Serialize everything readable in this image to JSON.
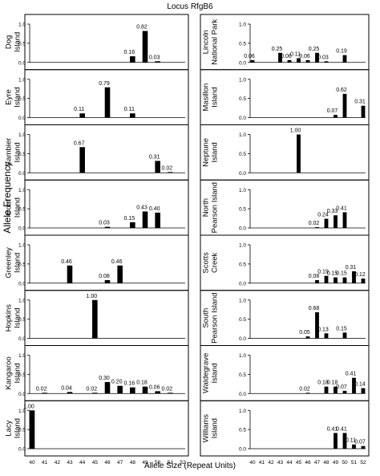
{
  "figure": {
    "title": "Locus RfgB6",
    "ylabel": "Allele Frequency",
    "xlabel": "Allele Size (Repeat Units)"
  },
  "chart_data": {
    "type": "bar",
    "title": "Locus RfgB6",
    "xlabel": "Allele Size (Repeat Units)",
    "ylabel": "Allele Frequency",
    "x_ticks": [
      "40",
      "41",
      "42",
      "43",
      "44",
      "45",
      "46",
      "47",
      "48",
      "49",
      "50",
      "51",
      "52"
    ],
    "ylim": [
      0,
      1.0
    ],
    "y_ticks": [
      "0.0",
      "0.5",
      "1.0"
    ],
    "panels": [
      {
        "name": "Dog Island",
        "column": "left",
        "bars": [
          {
            "x": 48,
            "value": 0.16,
            "label": "0.16"
          },
          {
            "x": 49,
            "value": 0.82,
            "label": "0.82"
          },
          {
            "x": 50,
            "value": 0.03,
            "label": "0.03"
          }
        ]
      },
      {
        "name": "Eyre Island",
        "column": "left",
        "bars": [
          {
            "x": 44,
            "value": 0.11,
            "label": "0.11"
          },
          {
            "x": 46,
            "value": 0.79,
            "label": "0.79"
          },
          {
            "x": 48,
            "value": 0.11,
            "label": "0.11"
          }
        ]
      },
      {
        "name": "Gambier Island",
        "column": "left",
        "bars": [
          {
            "x": 44,
            "value": 0.67,
            "label": "0.67"
          },
          {
            "x": 50,
            "value": 0.31,
            "label": "0.31"
          },
          {
            "x": 51,
            "value": 0.02,
            "label": "0.02"
          }
        ]
      },
      {
        "name": "Goat Island",
        "column": "left",
        "bars": [
          {
            "x": 46,
            "value": 0.03,
            "label": "0.03"
          },
          {
            "x": 48,
            "value": 0.15,
            "label": "0.15"
          },
          {
            "x": 49,
            "value": 0.43,
            "label": "0.43"
          },
          {
            "x": 50,
            "value": 0.4,
            "label": "0.40"
          }
        ]
      },
      {
        "name": "Greenley Island",
        "column": "left",
        "bars": [
          {
            "x": 43,
            "value": 0.46,
            "label": "0.46"
          },
          {
            "x": 46,
            "value": 0.08,
            "label": "0.08"
          },
          {
            "x": 47,
            "value": 0.46,
            "label": "0.46"
          }
        ]
      },
      {
        "name": "Hopkins Island",
        "column": "left",
        "bars": [
          {
            "x": 45,
            "value": 1.0,
            "label": "1.00"
          }
        ]
      },
      {
        "name": "Kangaroo Island",
        "column": "left",
        "bars": [
          {
            "x": 41,
            "value": 0.02,
            "label": "0.02"
          },
          {
            "x": 43,
            "value": 0.04,
            "label": "0.04"
          },
          {
            "x": 45,
            "value": 0.02,
            "label": "0.02"
          },
          {
            "x": 46,
            "value": 0.3,
            "label": "0.30"
          },
          {
            "x": 47,
            "value": 0.2,
            "label": "0.20"
          },
          {
            "x": 48,
            "value": 0.16,
            "label": "0.16"
          },
          {
            "x": 49,
            "value": 0.18,
            "label": "0.18"
          },
          {
            "x": 50,
            "value": 0.06,
            "label": "0.06"
          },
          {
            "x": 51,
            "value": 0.02,
            "label": "0.02"
          }
        ]
      },
      {
        "name": "Lacy Island",
        "column": "left",
        "bars": [
          {
            "x": 40,
            "value": 1.0,
            "label": "1.00"
          }
        ]
      },
      {
        "name": "Lincoln National Park",
        "column": "right",
        "bars": [
          {
            "x": 40,
            "value": 0.06,
            "label": "0.06"
          },
          {
            "x": 43,
            "value": 0.25,
            "label": "0.25"
          },
          {
            "x": 44,
            "value": 0.06,
            "label": "0.06"
          },
          {
            "x": 45,
            "value": 0.11,
            "label": "0.11"
          },
          {
            "x": 46,
            "value": 0.06,
            "label": "0.06"
          },
          {
            "x": 47,
            "value": 0.25,
            "label": "0.25"
          },
          {
            "x": 48,
            "value": 0.03,
            "label": "0.03"
          },
          {
            "x": 50,
            "value": 0.19,
            "label": "0.19"
          }
        ]
      },
      {
        "name": "Masillon Island",
        "column": "right",
        "bars": [
          {
            "x": 49,
            "value": 0.07,
            "label": "0.07"
          },
          {
            "x": 50,
            "value": 0.62,
            "label": "0.62"
          },
          {
            "x": 52,
            "value": 0.31,
            "label": "0.31"
          }
        ]
      },
      {
        "name": "Neptune Island",
        "column": "right",
        "bars": [
          {
            "x": 45,
            "value": 1.0,
            "label": "1.00"
          }
        ]
      },
      {
        "name": "North Pearson Island",
        "column": "right",
        "bars": [
          {
            "x": 47,
            "value": 0.02,
            "label": "0.02"
          },
          {
            "x": 48,
            "value": 0.24,
            "label": "0.24"
          },
          {
            "x": 49,
            "value": 0.33,
            "label": "0.33"
          },
          {
            "x": 50,
            "value": 0.41,
            "label": "0.41"
          }
        ]
      },
      {
        "name": "Scotts Creek",
        "column": "right",
        "bars": [
          {
            "x": 47,
            "value": 0.08,
            "label": "0.08"
          },
          {
            "x": 48,
            "value": 0.19,
            "label": "0.19"
          },
          {
            "x": 49,
            "value": 0.15,
            "label": "0.15"
          },
          {
            "x": 50,
            "value": 0.15,
            "label": "0.15"
          },
          {
            "x": 51,
            "value": 0.31,
            "label": "0.31"
          },
          {
            "x": 52,
            "value": 0.12,
            "label": "0.12"
          }
        ]
      },
      {
        "name": "South Pearson Island",
        "column": "right",
        "bars": [
          {
            "x": 46,
            "value": 0.05,
            "label": "0.05"
          },
          {
            "x": 47,
            "value": 0.68,
            "label": "0.68"
          },
          {
            "x": 48,
            "value": 0.13,
            "label": "0.13"
          },
          {
            "x": 50,
            "value": 0.15,
            "label": "0.15"
          }
        ]
      },
      {
        "name": "Waldegrave Island",
        "column": "right",
        "bars": [
          {
            "x": 46,
            "value": 0.02,
            "label": "0.02"
          },
          {
            "x": 48,
            "value": 0.18,
            "label": "0.18"
          },
          {
            "x": 49,
            "value": 0.18,
            "label": "0.18"
          },
          {
            "x": 50,
            "value": 0.07,
            "label": "0.07"
          },
          {
            "x": 51,
            "value": 0.41,
            "label": "0.41"
          },
          {
            "x": 52,
            "value": 0.14,
            "label": "0.14"
          }
        ]
      },
      {
        "name": "Williams Island",
        "column": "right",
        "bars": [
          {
            "x": 49,
            "value": 0.41,
            "label": "0.41"
          },
          {
            "x": 50,
            "value": 0.41,
            "label": "0.41"
          },
          {
            "x": 51,
            "value": 0.11,
            "label": "0.11"
          },
          {
            "x": 52,
            "value": 0.07,
            "label": "0.07"
          }
        ]
      }
    ],
    "bar_color": "#000000",
    "grid": false,
    "legend": "none"
  }
}
